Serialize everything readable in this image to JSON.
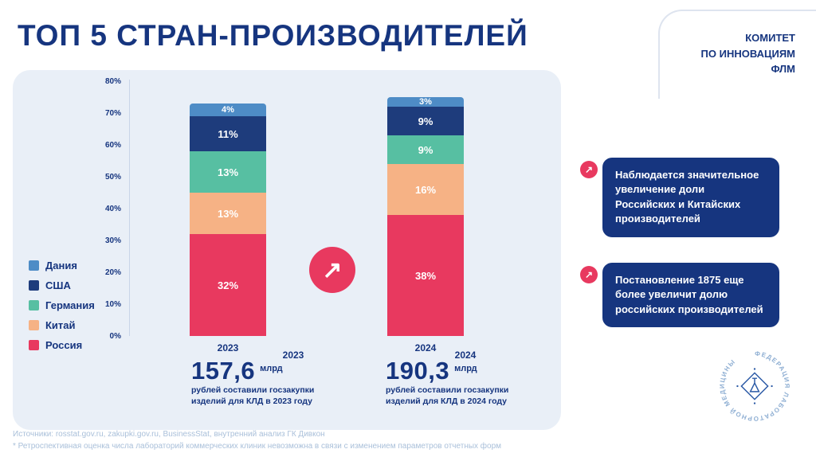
{
  "page": {
    "title": "ТОП 5 СТРАН-ПРОИЗВОДИТЕЛЕЙ",
    "committee": [
      "КОМИТЕТ",
      "ПО ИННОВАЦИЯМ",
      "ФЛМ"
    ]
  },
  "colors": {
    "navy": "#16357F",
    "red": "#E8395F",
    "panel_bg": "#E9EFF7"
  },
  "chart_data": {
    "type": "bar",
    "stacked": true,
    "title": "",
    "categories": [
      "2023",
      "2024"
    ],
    "x_labels_secondary": [
      "2023",
      "2024"
    ],
    "series": [
      {
        "name": "Россия",
        "color": "#E8395F",
        "values": [
          32,
          38
        ]
      },
      {
        "name": "Китай",
        "color": "#F6B285",
        "values": [
          13,
          16
        ]
      },
      {
        "name": "Германия",
        "color": "#57BFA2",
        "values": [
          13,
          9
        ]
      },
      {
        "name": "США",
        "color": "#1E3C7C",
        "values": [
          11,
          9
        ]
      },
      {
        "name": "Дания",
        "color": "#4E8CC6",
        "values": [
          4,
          3
        ]
      }
    ],
    "legend_order": [
      "Дания",
      "США",
      "Германия",
      "Китай",
      "Россия"
    ],
    "legend_position": "left",
    "y_ticks": [
      "80%",
      "70%",
      "60%",
      "50%",
      "40%",
      "30%",
      "20%",
      "10%",
      "0%"
    ],
    "ylim": [
      0,
      80
    ],
    "grid": false,
    "value_suffix": "%"
  },
  "arrow_glyph": "↗",
  "stats": [
    {
      "value": "157,6",
      "unit": "млрд",
      "caption_line1": "рублей составили госзакупки",
      "caption_line2": "изделий для КЛД в 2023 году"
    },
    {
      "value": "190,3",
      "unit": "млрд",
      "caption_line1": "рублей составили госзакупки",
      "caption_line2": "изделий для КЛД в 2024 году"
    }
  ],
  "callouts": [
    {
      "text": "Наблюдается значительное увеличение доли Российских и Китайских производителей"
    },
    {
      "text": "Постановление 1875 еще более увеличит долю российских производителей"
    }
  ],
  "logo": {
    "ring_text": "ФЕДЕРАЦИЯ ЛАБОРАТОРНОЙ МЕДИЦИНЫ"
  },
  "footer": {
    "line1": "Источники: rosstat.gov.ru, zakupki.gov.ru, BusinessStat, внутренний анализ ГК Дивкон",
    "line2": "* Ретроспективная оценка числа лабораторий коммерческих клиник невозможна в связи с изменением параметров отчетных форм"
  }
}
